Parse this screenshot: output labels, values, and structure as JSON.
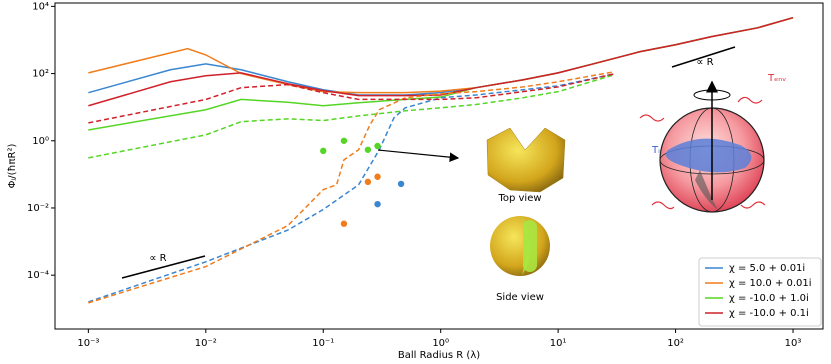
{
  "chart_data": {
    "type": "line",
    "x_label": "Ball Radius R (λ)",
    "y_label": "Φⱼ/(ħπR²)",
    "xscale": "log",
    "yscale": "log",
    "xlim": [
      0.00052,
      1800
    ],
    "ylim": [
      2.5e-06,
      12600
    ],
    "xticks": [
      {
        "value": 0.001,
        "label": "10⁻³"
      },
      {
        "value": 0.01,
        "label": "10⁻²"
      },
      {
        "value": 0.1,
        "label": "10⁻¹"
      },
      {
        "value": 1,
        "label": "10⁰"
      },
      {
        "value": 10,
        "label": "10¹"
      },
      {
        "value": 100,
        "label": "10²"
      },
      {
        "value": 1000,
        "label": "10³"
      }
    ],
    "yticks": [
      {
        "value": 0.0001,
        "label": "10⁻⁴"
      },
      {
        "value": 0.01,
        "label": "10⁻²"
      },
      {
        "value": 1,
        "label": "10⁰"
      },
      {
        "value": 100,
        "label": "10²"
      },
      {
        "value": 10000,
        "label": "10⁴"
      }
    ],
    "legend": "lower right",
    "series": [
      {
        "name": "χ = 5.0 + 0.01i",
        "color": "#3a86d0",
        "type": "line",
        "style": "solid",
        "x": [
          0.001,
          0.005,
          0.01,
          0.02,
          0.05,
          0.1,
          0.2,
          0.5,
          1,
          2,
          5,
          10,
          20,
          50,
          100,
          200,
          500,
          1000
        ],
        "values": [
          27,
          130,
          195,
          130,
          57,
          33,
          23,
          23,
          27,
          38,
          65,
          105,
          195,
          450,
          720,
          1250,
          2300,
          4600
        ]
      },
      {
        "name": "χ = 10.0 + 0.01i",
        "color": "#f07c1c",
        "type": "line",
        "style": "solid",
        "x": [
          0.001,
          0.007,
          0.01,
          0.02,
          0.05,
          0.1,
          0.2,
          0.5,
          1,
          2,
          5,
          10,
          20,
          50,
          100,
          200,
          500,
          1000
        ],
        "values": [
          105,
          550,
          360,
          100,
          47,
          29,
          27,
          27,
          30,
          38,
          65,
          105,
          195,
          450,
          720,
          1250,
          2300,
          4600
        ]
      },
      {
        "name": "χ = -10.0 + 1.0i",
        "color": "#55d624",
        "type": "line",
        "style": "solid",
        "x": [
          0.001,
          0.01,
          0.02,
          0.05,
          0.1,
          0.2,
          0.5,
          1,
          2,
          5,
          10,
          20,
          50,
          100,
          200,
          500,
          1000
        ],
        "values": [
          2.1,
          8.4,
          17,
          14,
          11,
          13.5,
          17,
          20,
          38,
          65,
          105,
          195,
          450,
          720,
          1250,
          2300,
          4600
        ]
      },
      {
        "name": "χ = -10.0 + 0.1i",
        "color": "#d0202a",
        "type": "line",
        "style": "solid",
        "x": [
          0.001,
          0.005,
          0.01,
          0.02,
          0.05,
          0.1,
          0.2,
          0.5,
          1,
          2,
          5,
          10,
          20,
          50,
          100,
          200,
          500,
          1000
        ],
        "values": [
          11,
          57,
          86,
          105,
          50,
          31,
          22,
          22,
          23,
          38,
          65,
          105,
          195,
          450,
          720,
          1250,
          2300,
          4600
        ]
      },
      {
        "color": "#3a86d0",
        "type": "line",
        "style": "dashed",
        "x": [
          0.001,
          0.01,
          0.05,
          0.1,
          0.2,
          0.3,
          0.4,
          0.5,
          1,
          2,
          5,
          10,
          30
        ],
        "values": [
          1.6e-05,
          0.00025,
          0.0022,
          0.009,
          0.049,
          0.54,
          4.8,
          9.6,
          19,
          23,
          33,
          43,
          98
        ]
      },
      {
        "color": "#f07c1c",
        "type": "line",
        "style": "dashed",
        "x": [
          0.001,
          0.01,
          0.05,
          0.1,
          0.13,
          0.15,
          0.2,
          0.25,
          0.3,
          0.5,
          1,
          2,
          5,
          10,
          30
        ],
        "values": [
          1.5e-05,
          0.00018,
          0.003,
          0.035,
          0.049,
          0.27,
          0.54,
          3,
          8.4,
          19,
          25,
          29,
          40,
          57,
          113
        ]
      },
      {
        "color": "#55d624",
        "type": "line",
        "style": "dashed",
        "x": [
          0.001,
          0.01,
          0.02,
          0.05,
          0.1,
          0.2,
          0.5,
          1,
          2,
          5,
          10,
          30
        ],
        "values": [
          0.31,
          1.5,
          3.7,
          4.5,
          4,
          5.5,
          7.8,
          9.6,
          12,
          19,
          29,
          92
        ]
      },
      {
        "color": "#d0202a",
        "type": "line",
        "style": "dashed",
        "x": [
          0.001,
          0.01,
          0.02,
          0.05,
          0.1,
          0.2,
          0.5,
          1,
          2,
          5,
          10,
          30
        ],
        "values": [
          3.4,
          17,
          38,
          47,
          27,
          17,
          17,
          17,
          19,
          29,
          40,
          98
        ]
      },
      {
        "color": "#55d624",
        "type": "scatter",
        "x": [
          0.1,
          0.15,
          0.24,
          0.29
        ],
        "values": [
          0.5,
          1,
          0.54,
          0.7
        ]
      },
      {
        "color": "#f07c1c",
        "type": "scatter",
        "x": [
          0.15,
          0.24,
          0.29
        ],
        "values": [
          0.0034,
          0.06,
          0.085
        ]
      },
      {
        "color": "#3a86d0",
        "type": "scatter",
        "x": [
          0.29,
          0.46
        ],
        "values": [
          0.013,
          0.052
        ]
      }
    ],
    "annotations": {
      "slope_low": "∝ R",
      "slope_high": "∝ R",
      "top_view": "Top view",
      "side_view": "Side view",
      "t_inner": "Tᵢ",
      "t_env": "Tₑₙᵥ"
    }
  }
}
